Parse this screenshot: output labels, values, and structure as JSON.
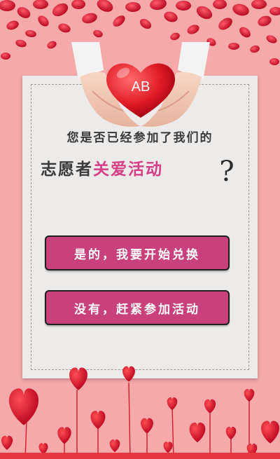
{
  "hero": {
    "badge": "AB"
  },
  "question": {
    "line1": "您是否已经参加了我们的",
    "line2_prefix": "志愿者",
    "line2_highlight": "关爱活动",
    "mark": "?"
  },
  "buttons": {
    "yes": "是的，我要开始兑换",
    "no": "没有，赶紧参加活动"
  },
  "colors": {
    "background": "#f6a9aa",
    "accent": "#d63f86",
    "button": "#c8407c",
    "heart": "#d8182f"
  }
}
